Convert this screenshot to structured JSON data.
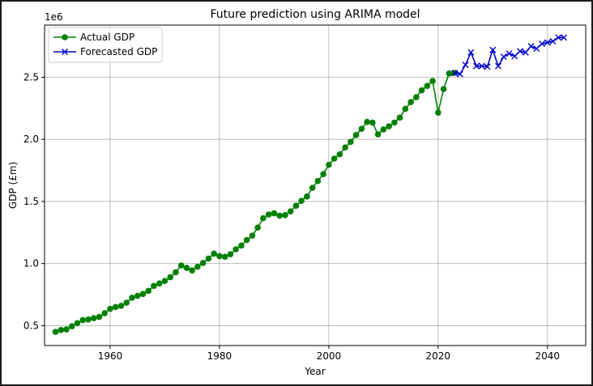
{
  "chart_data": {
    "type": "line",
    "title": "Future prediction using ARIMA model",
    "xlabel": "Year",
    "ylabel": "GDP (£m)",
    "y_offset_label": "1e6",
    "xlim": [
      1948,
      2047
    ],
    "ylim": [
      340000,
      2920000
    ],
    "xticks": [
      1960,
      1980,
      2000,
      2020,
      2040
    ],
    "yticks": [
      500000,
      1000000,
      1500000,
      2000000,
      2500000
    ],
    "ytick_labels": [
      "0.5",
      "1.0",
      "1.5",
      "2.0",
      "2.5"
    ],
    "grid": true,
    "legend_position": "top-left",
    "series": [
      {
        "name": "Actual GDP",
        "color": "#008000",
        "marker": "circle",
        "x": [
          1950,
          1951,
          1952,
          1953,
          1954,
          1955,
          1956,
          1957,
          1958,
          1959,
          1960,
          1961,
          1962,
          1963,
          1964,
          1965,
          1966,
          1967,
          1968,
          1969,
          1970,
          1971,
          1972,
          1973,
          1974,
          1975,
          1976,
          1977,
          1978,
          1979,
          1980,
          1981,
          1982,
          1983,
          1984,
          1985,
          1986,
          1987,
          1988,
          1989,
          1990,
          1991,
          1992,
          1993,
          1994,
          1995,
          1996,
          1997,
          1998,
          1999,
          2000,
          2001,
          2002,
          2003,
          2004,
          2005,
          2006,
          2007,
          2008,
          2009,
          2010,
          2011,
          2012,
          2013,
          2014,
          2015,
          2016,
          2017,
          2018,
          2019,
          2020,
          2021,
          2022,
          2023
        ],
        "y": [
          450000,
          465000,
          470000,
          495000,
          520000,
          545000,
          550000,
          560000,
          570000,
          600000,
          635000,
          650000,
          660000,
          685000,
          725000,
          740000,
          755000,
          780000,
          820000,
          840000,
          860000,
          890000,
          930000,
          985000,
          965000,
          945000,
          975000,
          1005000,
          1040000,
          1080000,
          1060000,
          1055000,
          1075000,
          1115000,
          1145000,
          1190000,
          1225000,
          1290000,
          1365000,
          1395000,
          1405000,
          1385000,
          1390000,
          1420000,
          1465000,
          1505000,
          1540000,
          1610000,
          1665000,
          1720000,
          1795000,
          1845000,
          1880000,
          1935000,
          1980000,
          2035000,
          2085000,
          2140000,
          2135000,
          2040000,
          2080000,
          2105000,
          2135000,
          2175000,
          2245000,
          2300000,
          2340000,
          2395000,
          2430000,
          2470000,
          2215000,
          2405000,
          2530000,
          2535000
        ]
      },
      {
        "name": "Forecasted GDP",
        "color": "#0000cc",
        "marker": "x",
        "x": [
          2023,
          2024,
          2025,
          2026,
          2027,
          2028,
          2029,
          2030,
          2031,
          2032,
          2033,
          2034,
          2035,
          2036,
          2037,
          2038,
          2039,
          2040,
          2041,
          2042,
          2043
        ],
        "y": [
          2535000,
          2525000,
          2600000,
          2700000,
          2590000,
          2590000,
          2585000,
          2720000,
          2590000,
          2665000,
          2690000,
          2670000,
          2710000,
          2700000,
          2750000,
          2730000,
          2770000,
          2780000,
          2790000,
          2820000,
          2820000
        ]
      }
    ]
  }
}
